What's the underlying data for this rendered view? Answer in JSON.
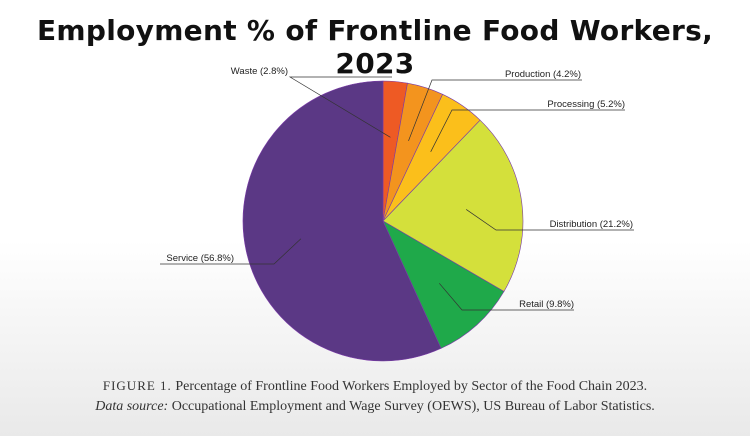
{
  "title": "Employment % of Frontline Food Workers, 2023",
  "caption": {
    "figure_label": "FIGURE 1.",
    "figure_text": "Percentage of Frontline Food Workers Employed by Sector of the Food Chain 2023.",
    "source_label": "Data source:",
    "source_text": "Occupational Employment and Wage Survey (OEWS), US Bureau of Labor Statistics."
  },
  "chart_data": {
    "type": "pie",
    "title": "Employment % of Frontline Food Workers, 2023",
    "categories": [
      "Waste",
      "Production",
      "Processing",
      "Distribution",
      "Retail",
      "Service"
    ],
    "values": [
      2.8,
      4.2,
      5.2,
      21.2,
      9.8,
      56.8
    ],
    "labels": [
      "Waste (2.8%)",
      "Production (4.2%)",
      "Processing (5.2%)",
      "Distribution (21.2%)",
      "Retail (9.8%)",
      "Service (56.8%)"
    ],
    "colors": [
      "#ee5a24",
      "#f3941e",
      "#fbbf1b",
      "#d4e03b",
      "#1fa94a",
      "#5b3885"
    ]
  }
}
